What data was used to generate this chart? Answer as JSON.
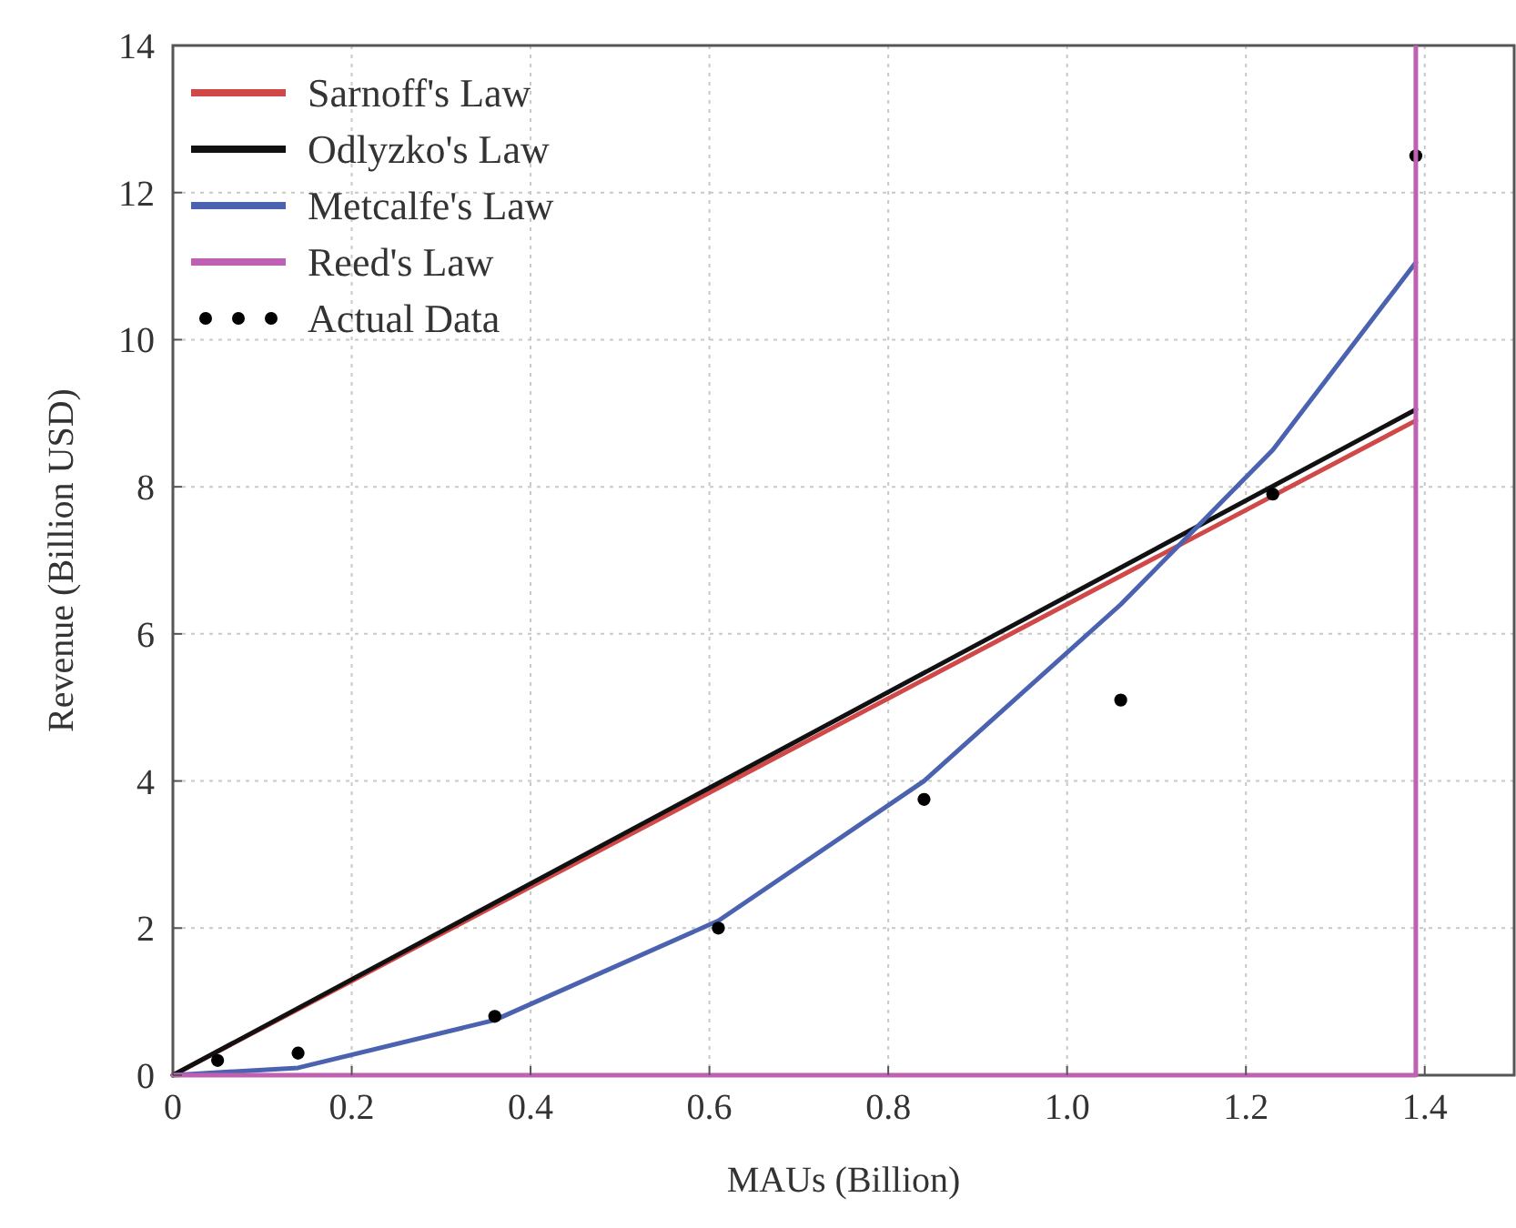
{
  "chart_data": {
    "type": "line",
    "xlabel": "MAUs (Billion)",
    "ylabel": "Revenue (Billion USD)",
    "xlim": [
      0,
      1.5
    ],
    "xticks": [
      0,
      0.2,
      0.4,
      0.6,
      0.8,
      {
        "value": 1,
        "label": "1.0"
      },
      1.2,
      1.4
    ],
    "ylim": [
      0,
      14
    ],
    "yticks": [
      0,
      2,
      4,
      6,
      8,
      10,
      12,
      14
    ],
    "grid": true,
    "legend": "top left",
    "series": [
      {
        "name": "Sarnoff's Law",
        "color": "#d04848",
        "x": [
          0,
          1.39
        ],
        "values": [
          0,
          8.9
        ]
      },
      {
        "name": "Odlyzko's Law",
        "color": "#111111",
        "x": [
          0,
          1.39
        ],
        "values": [
          0,
          9.05
        ]
      },
      {
        "name": "Metcalfe's Law",
        "color": "#4a62b0",
        "x": [
          0,
          0.14,
          0.36,
          0.61,
          0.84,
          1.06,
          1.23,
          1.39
        ],
        "values": [
          0,
          0.1,
          0.75,
          2.1,
          4.0,
          6.4,
          8.5,
          11.05
        ]
      },
      {
        "name": "Reed's Law",
        "color": "#c060b0",
        "x": [
          0,
          0.35,
          0.7,
          1.05,
          1.39
        ],
        "values": [
          0,
          0,
          0,
          0,
          0
        ]
      },
      {
        "name": "Actual Data",
        "type": "scatter",
        "marker": "circle",
        "color": "#000000",
        "x": [
          0.05,
          0.14,
          0.36,
          0.61,
          0.84,
          1.06,
          1.23,
          1.39
        ],
        "values": [
          0.2,
          0.3,
          0.8,
          2.0,
          3.75,
          5.1,
          7.9,
          12.5
        ]
      }
    ],
    "ref_lines": [
      {
        "axis": "x",
        "value": 1.39,
        "color": "#c060b0"
      }
    ]
  }
}
